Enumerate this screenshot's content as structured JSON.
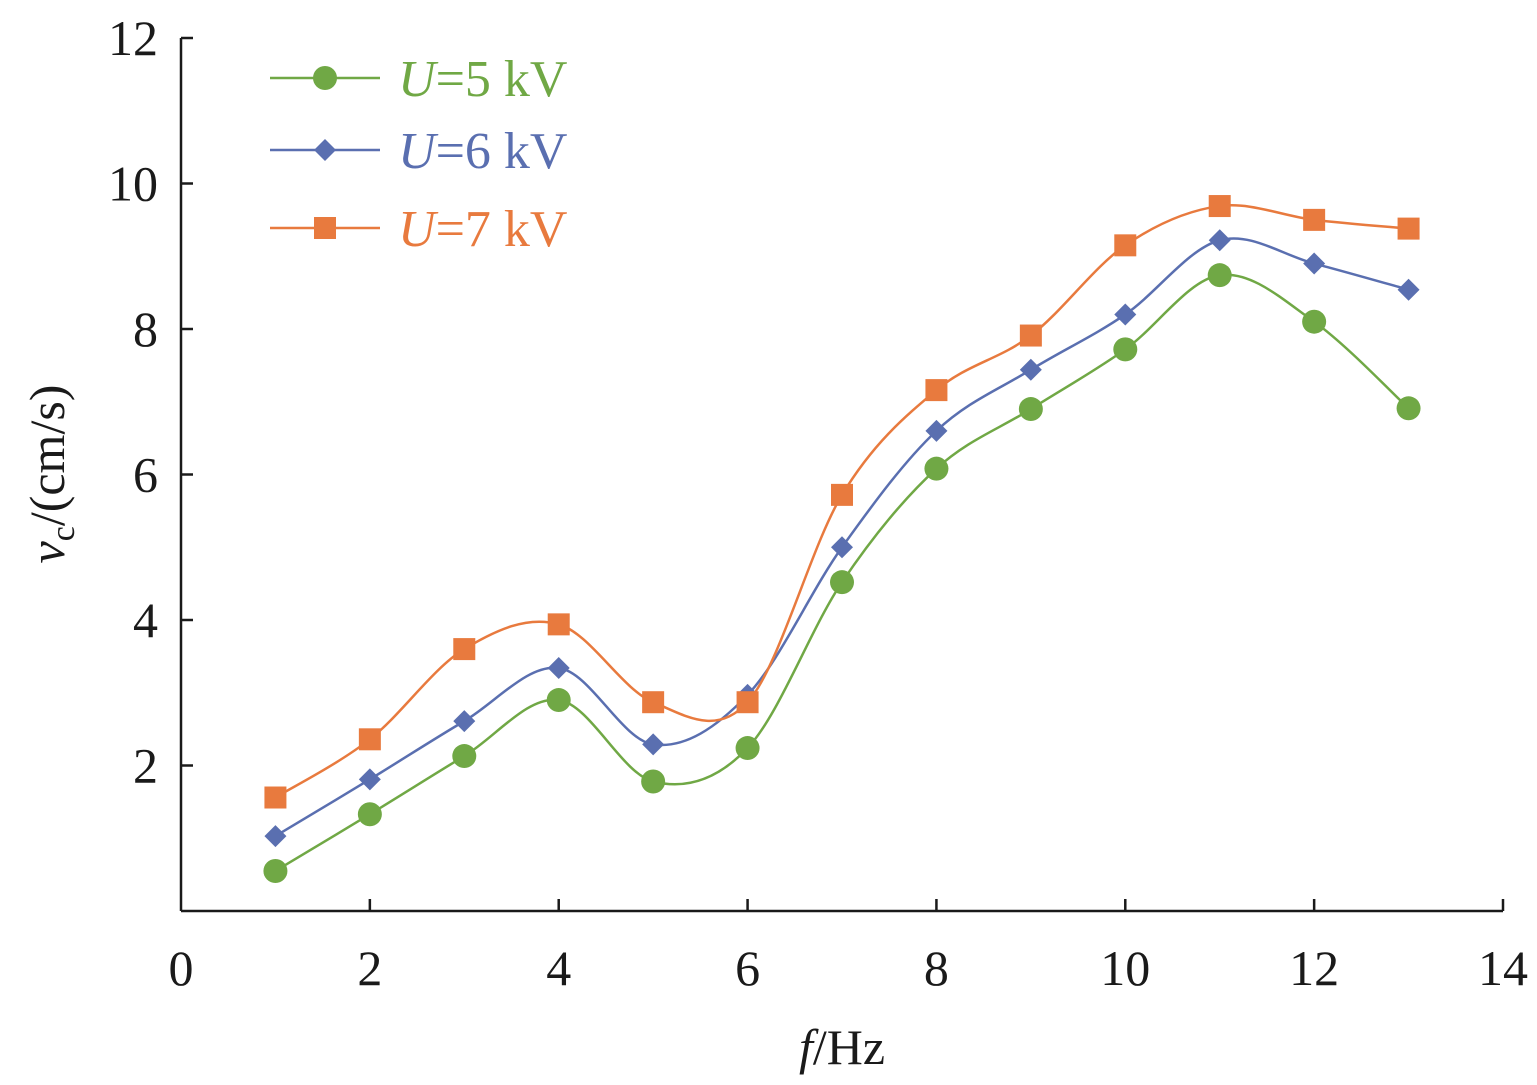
{
  "chart_data": {
    "type": "line",
    "xlabel": {
      "italic": "f",
      "rest": "/Hz"
    },
    "ylabel": {
      "italic": "v",
      "sub": "c",
      "rest": "/(cm/s)"
    },
    "xlim": [
      0,
      14
    ],
    "ylim": [
      0,
      12
    ],
    "xticks": [
      "0",
      "2",
      "4",
      "6",
      "8",
      "10",
      "12",
      "14"
    ],
    "yticks": [
      "2",
      "4",
      "6",
      "8",
      "10",
      "12"
    ],
    "x": [
      1,
      2,
      3,
      4,
      5,
      6,
      7,
      8,
      9,
      10,
      11,
      12,
      13
    ],
    "series": [
      {
        "name": {
          "italic": "U",
          "rest": "=5 kV"
        },
        "color": "#70a845",
        "marker": "circle",
        "values": [
          0.55,
          1.33,
          2.13,
          2.9,
          1.78,
          2.24,
          4.52,
          6.08,
          6.9,
          7.72,
          8.74,
          8.1,
          6.91
        ]
      },
      {
        "name": {
          "italic": "U",
          "rest": "=6 kV"
        },
        "color": "#5a6fb0",
        "marker": "diamond",
        "values": [
          1.03,
          1.81,
          2.61,
          3.34,
          2.29,
          2.97,
          5.0,
          6.6,
          7.44,
          8.2,
          9.22,
          8.9,
          8.54
        ]
      },
      {
        "name": {
          "italic": "U",
          "rest": "=7 kV"
        },
        "color": "#e87a3e",
        "marker": "square",
        "values": [
          1.56,
          2.36,
          3.6,
          3.94,
          2.87,
          2.87,
          5.72,
          7.16,
          7.91,
          9.15,
          9.69,
          9.5,
          9.38
        ]
      }
    ],
    "grid": false,
    "legend": "top-left"
  }
}
